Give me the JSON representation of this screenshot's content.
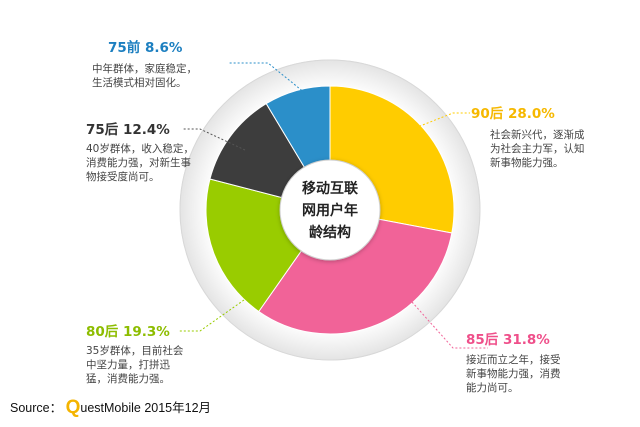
{
  "chart_data": {
    "type": "pie",
    "center_title_lines": [
      "移动互联",
      "网用户年",
      "龄结构"
    ],
    "slices": [
      {
        "label": "90后",
        "percent": "28.0%",
        "value": 28.0,
        "color": "#ffcc00",
        "description": [
          "社会新兴代，逐渐成",
          "为社会主力军，认知",
          "新事物能力强。"
        ]
      },
      {
        "label": "85后",
        "percent": "31.8%",
        "value": 31.8,
        "color": "#f16398",
        "description": [
          "接近而立之年，接受",
          "新事物能力强，消费",
          "能力尚可。"
        ]
      },
      {
        "label": "80后",
        "percent": "19.3%",
        "value": 19.3,
        "color": "#99cc00",
        "description": [
          "35岁群体，目前社会",
          "中坚力量，打拼迅",
          "猛，消费能力强。"
        ]
      },
      {
        "label": "75后",
        "percent": "12.4%",
        "value": 12.4,
        "color": "#3d3d3d",
        "description": [
          "40岁群体，收入稳定，",
          "消费能力强，对新生事",
          "物接受度尚可。"
        ]
      },
      {
        "label": "75前",
        "percent": "8.6%",
        "value": 8.6,
        "color": "#2b8fc9",
        "description": [
          "中年群体，家庭稳定，",
          "生活模式相对固化。"
        ]
      }
    ]
  },
  "source": {
    "prefix": "Source：",
    "brand_q": "Q",
    "brand_rest": "uestMobile",
    "date": "2015年12月"
  }
}
